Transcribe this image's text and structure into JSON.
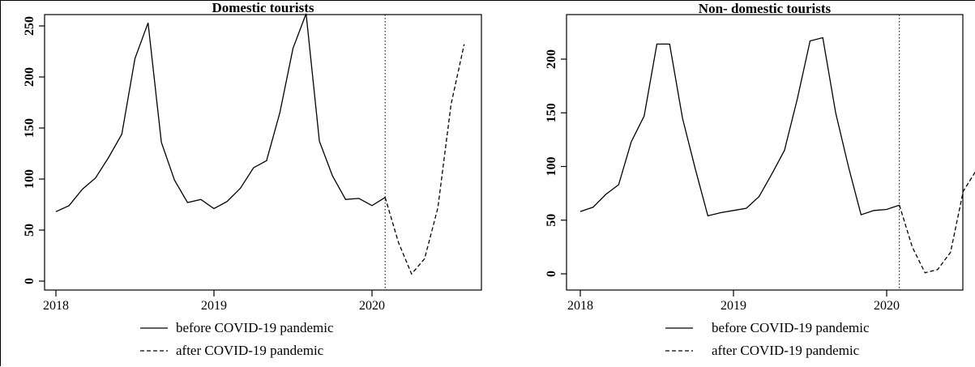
{
  "chart_data": [
    {
      "type": "line",
      "title": "Domestic tourists",
      "xlabel": "",
      "ylabel": "",
      "xlim": [
        2018,
        2020.58
      ],
      "ylim": [
        0,
        250
      ],
      "x_ticks": [
        "2018",
        "2019",
        "2020"
      ],
      "y_ticks": [
        "0",
        "50",
        "100",
        "150",
        "200",
        "250"
      ],
      "vline_x": 2020.083,
      "series": [
        {
          "name": "before COVID-19 pandemic",
          "style": "solid",
          "x": [
            2018.0,
            2018.083,
            2018.167,
            2018.25,
            2018.333,
            2018.417,
            2018.5,
            2018.583,
            2018.667,
            2018.75,
            2018.833,
            2018.917,
            2019.0,
            2019.083,
            2019.167,
            2019.25,
            2019.333,
            2019.417,
            2019.5,
            2019.583,
            2019.667,
            2019.75,
            2019.833,
            2019.917,
            2020.0,
            2020.083
          ],
          "y": [
            68,
            74,
            90,
            101,
            121,
            144,
            218,
            253,
            136,
            99,
            77,
            80,
            71,
            78,
            91,
            111,
            118,
            165,
            228,
            262,
            137,
            103,
            80,
            81,
            74,
            82
          ]
        },
        {
          "name": "after COVID-19 pandemic",
          "style": "dashed",
          "x": [
            2020.083,
            2020.167,
            2020.25,
            2020.333,
            2020.417,
            2020.5,
            2020.583
          ],
          "y": [
            82,
            38,
            7,
            22,
            72,
            173,
            232
          ]
        }
      ]
    },
    {
      "type": "line",
      "title": "Non- domestic tourists",
      "xlabel": "",
      "ylabel": "",
      "xlim": [
        2018,
        2020.58
      ],
      "ylim": [
        0,
        220
      ],
      "x_ticks": [
        "2018",
        "2019",
        "2020"
      ],
      "y_ticks": [
        "0",
        "50",
        "100",
        "150",
        "200"
      ],
      "vline_x": 2020.083,
      "series": [
        {
          "name": "before COVID-19 pandemic",
          "style": "solid",
          "x": [
            2018.0,
            2018.083,
            2018.167,
            2018.25,
            2018.333,
            2018.417,
            2018.5,
            2018.583,
            2018.667,
            2018.75,
            2018.833,
            2018.917,
            2019.0,
            2019.083,
            2019.167,
            2019.25,
            2019.333,
            2019.417,
            2019.5,
            2019.583,
            2019.667,
            2019.75,
            2019.833,
            2019.917,
            2020.0,
            2020.083
          ],
          "y": [
            58,
            62,
            74,
            83,
            123,
            147,
            214,
            214,
            145,
            98,
            54,
            57,
            59,
            61,
            72,
            93,
            115,
            163,
            217,
            220,
            150,
            100,
            55,
            59,
            60,
            64
          ]
        },
        {
          "name": "after COVID-19 pandemic",
          "style": "dashed",
          "x": [
            2020.083,
            2020.167,
            2020.25,
            2020.333,
            2020.417,
            2020.5,
            2020.583
          ],
          "y": [
            64,
            25,
            1,
            4,
            20,
            77,
            96
          ]
        }
      ]
    }
  ]
}
